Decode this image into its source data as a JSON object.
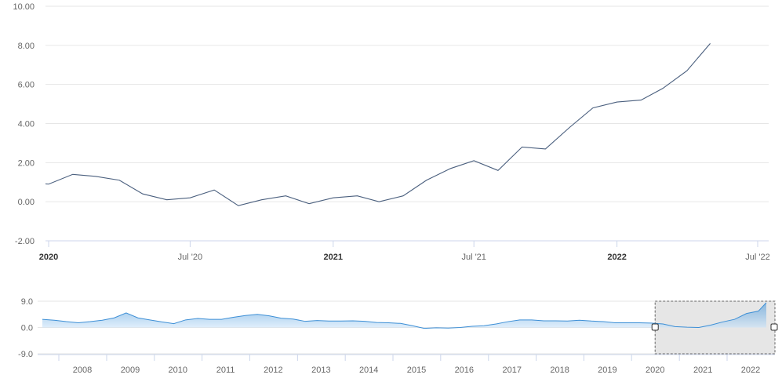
{
  "chart_data": [
    {
      "type": "line",
      "title": "",
      "xlabel": "",
      "ylabel": "",
      "ylim": [
        -2,
        10
      ],
      "grid": true,
      "legend": "none",
      "color": "#4a5f7e",
      "y_ticks": [
        "-2.00",
        "0.00",
        "2.00",
        "4.00",
        "6.00",
        "8.00",
        "10.00"
      ],
      "x_ticks": [
        {
          "label": "2020",
          "x": "2020-01-01",
          "bold": true
        },
        {
          "label": "Jul '20",
          "x": "2020-07-01",
          "bold": false
        },
        {
          "label": "2021",
          "x": "2021-01-01",
          "bold": true
        },
        {
          "label": "Jul '21",
          "x": "2021-07-01",
          "bold": false
        },
        {
          "label": "2022",
          "x": "2022-01-01",
          "bold": true
        },
        {
          "label": "Jul '22",
          "x": "2022-07-01",
          "bold": false
        }
      ],
      "series": [
        {
          "x": [
            "2019-12-01",
            "2020-01-01",
            "2020-02-01",
            "2020-03-01",
            "2020-04-01",
            "2020-05-01",
            "2020-06-01",
            "2020-07-01",
            "2020-08-01",
            "2020-09-01",
            "2020-10-01",
            "2020-11-01",
            "2020-12-01",
            "2021-01-01",
            "2021-02-01",
            "2021-03-01",
            "2021-04-01",
            "2021-05-01",
            "2021-06-01",
            "2021-07-01",
            "2021-08-01",
            "2021-09-01",
            "2021-10-01",
            "2021-11-01",
            "2021-12-01",
            "2022-01-01",
            "2022-02-01",
            "2022-03-01",
            "2022-04-01",
            "2022-05-01"
          ],
          "values": [
            1.0,
            0.9,
            1.4,
            1.3,
            1.1,
            0.4,
            0.1,
            0.2,
            0.6,
            -0.2,
            0.1,
            0.3,
            -0.1,
            0.2,
            0.3,
            0.0,
            0.3,
            1.1,
            1.7,
            2.1,
            1.6,
            2.8,
            2.7,
            3.8,
            4.8,
            5.1,
            5.2,
            5.8,
            6.7,
            8.1
          ]
        }
      ]
    },
    {
      "type": "area",
      "title": "",
      "xlabel": "",
      "ylabel": "",
      "ylim": [
        -9,
        9
      ],
      "grid": true,
      "legend": "none",
      "color": "#3d8fd6",
      "fill": "#cfe6fa",
      "y_ticks": [
        "-9.0",
        "0.0",
        "9.0"
      ],
      "x_ticks": [
        "2008",
        "2009",
        "2010",
        "2011",
        "2012",
        "2013",
        "2014",
        "2015",
        "2016",
        "2017",
        "2018",
        "2019",
        "2020",
        "2021",
        "2022"
      ],
      "selection": {
        "start": "2020-01-01",
        "end": "2022-06-01",
        "fill": "#e6e6e6"
      },
      "series": [
        {
          "x": [
            "2007-03-01",
            "2007-06-01",
            "2007-09-01",
            "2007-12-01",
            "2008-03-01",
            "2008-06-01",
            "2008-09-01",
            "2008-12-01",
            "2009-03-01",
            "2009-06-01",
            "2009-09-01",
            "2009-12-01",
            "2010-03-01",
            "2010-06-01",
            "2010-09-01",
            "2010-12-01",
            "2011-03-01",
            "2011-06-01",
            "2011-09-01",
            "2011-12-01",
            "2012-03-01",
            "2012-06-01",
            "2012-09-01",
            "2012-12-01",
            "2013-03-01",
            "2013-06-01",
            "2013-09-01",
            "2013-12-01",
            "2014-03-01",
            "2014-06-01",
            "2014-09-01",
            "2014-12-01",
            "2015-03-01",
            "2015-06-01",
            "2015-09-01",
            "2015-12-01",
            "2016-03-01",
            "2016-06-01",
            "2016-09-01",
            "2016-12-01",
            "2017-03-01",
            "2017-06-01",
            "2017-09-01",
            "2017-12-01",
            "2018-03-01",
            "2018-06-01",
            "2018-09-01",
            "2018-12-01",
            "2019-03-01",
            "2019-06-01",
            "2019-09-01",
            "2019-12-01",
            "2020-03-01",
            "2020-06-01",
            "2020-09-01",
            "2020-12-01",
            "2021-03-01",
            "2021-06-01",
            "2021-09-01",
            "2021-12-01",
            "2022-03-01",
            "2022-05-01"
          ],
          "values": [
            2.8,
            2.5,
            2.0,
            1.6,
            2.0,
            2.5,
            3.3,
            5.0,
            3.3,
            2.6,
            1.9,
            1.3,
            2.6,
            3.1,
            2.8,
            2.8,
            3.5,
            4.1,
            4.5,
            4.0,
            3.2,
            2.9,
            2.1,
            2.4,
            2.2,
            2.2,
            2.3,
            2.1,
            1.7,
            1.6,
            1.4,
            0.6,
            -0.3,
            -0.1,
            -0.2,
            0.0,
            0.4,
            0.6,
            1.2,
            2.0,
            2.6,
            2.6,
            2.3,
            2.3,
            2.2,
            2.5,
            2.2,
            2.0,
            1.6,
            1.6,
            1.6,
            1.5,
            1.2,
            0.3,
            0.1,
            0.0,
            0.8,
            1.9,
            2.8,
            4.8,
            5.6,
            8.5
          ]
        }
      ]
    }
  ]
}
